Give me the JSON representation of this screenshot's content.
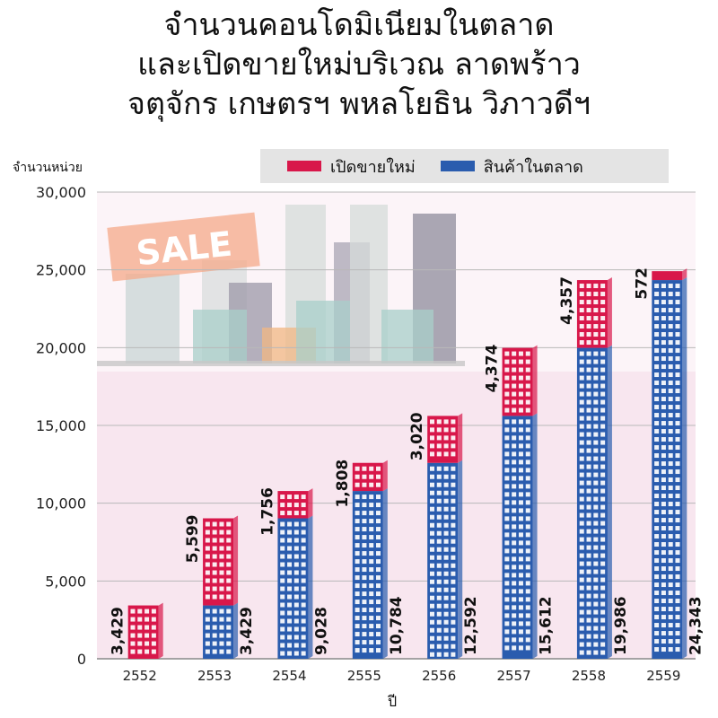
{
  "title_lines": [
    "จำนวนคอนโดมิเนียมในตลาด",
    "และเปิดขายใหม่บริเวณ ลาดพร้าว",
    "จตุจักร เกษตรฯ พหลโยธิน วิภาวดีฯ"
  ],
  "colors": {
    "new_sale": "#d8174a",
    "market": "#2a5cae",
    "background_pink": "#f8e6ef"
  },
  "decoration": {
    "sale_sign": "SALE"
  },
  "chart_data": {
    "type": "bar",
    "stacked": true,
    "title": "จำนวนคอนโดมิเนียมในตลาด และเปิดขายใหม่บริเวณ ลาดพร้าว จตุจักร เกษตรฯ พหลโยธิน วิภาวดีฯ",
    "xlabel": "ปี",
    "ylabel": "จำนวนหน่วย",
    "categories": [
      "2552",
      "2553",
      "2554",
      "2555",
      "2556",
      "2557",
      "2558",
      "2559"
    ],
    "series": [
      {
        "name": "สินค้าในตลาด",
        "values": [
          0,
          3429,
          9028,
          10784,
          12592,
          15612,
          19986,
          24343
        ]
      },
      {
        "name": "เปิดขายใหม่",
        "values": [
          3429,
          5599,
          1756,
          1808,
          3020,
          4374,
          4357,
          572
        ]
      }
    ],
    "market_labels": [
      "",
      "3,429",
      "9,028",
      "10,784",
      "12,592",
      "15,612",
      "19,986",
      "24,343"
    ],
    "new_labels": [
      "3,429",
      "5,599",
      "1,756",
      "1,808",
      "3,020",
      "4,374",
      "4,357",
      "572"
    ],
    "yticks": [
      "0",
      "5,000",
      "10,000",
      "15,000",
      "20,000",
      "25,000",
      "30,000"
    ],
    "ylim": [
      0,
      30000
    ],
    "legend": [
      "เปิดขายใหม่",
      "สินค้าในตลาด"
    ],
    "legend_position": "top-right"
  }
}
